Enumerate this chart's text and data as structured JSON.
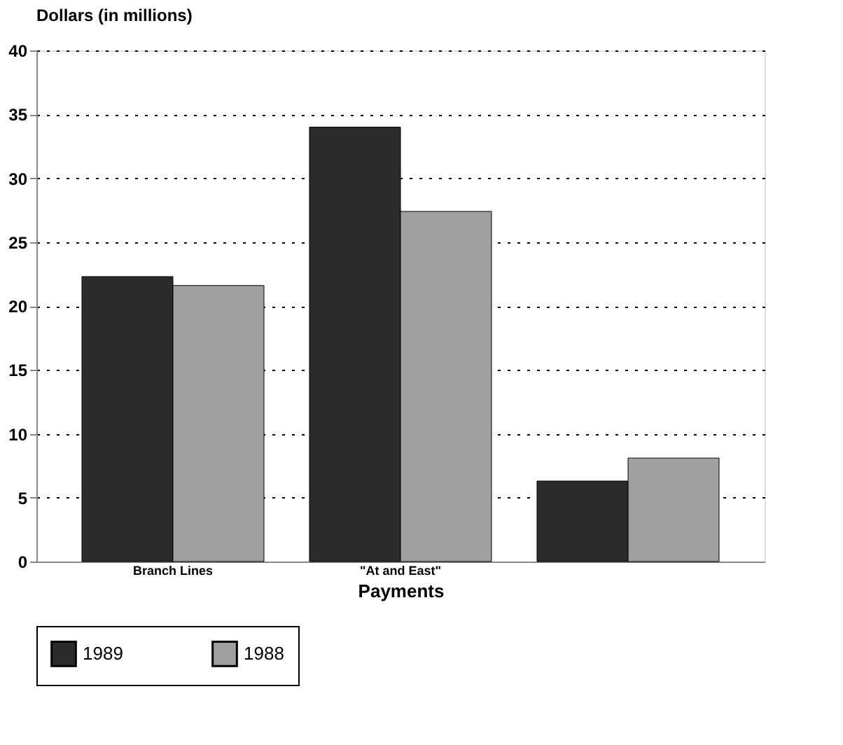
{
  "chart_data": {
    "type": "bar",
    "ylabel": "Dollars (in millions)",
    "xlabel": "Payments",
    "categories": [
      "Branch Lines",
      "\"At and East\"",
      null
    ],
    "series": [
      {
        "name": "1989",
        "color": "#2b2b2b",
        "values": [
          22.3,
          34.0,
          6.3
        ]
      },
      {
        "name": "1988",
        "color": "#a0a0a0",
        "values": [
          21.6,
          27.4,
          8.1
        ]
      }
    ],
    "ylim": [
      0,
      40
    ],
    "yticks": [
      0,
      5,
      10,
      15,
      20,
      25,
      30,
      35,
      40
    ],
    "grid": "y",
    "legend": "bottom"
  }
}
